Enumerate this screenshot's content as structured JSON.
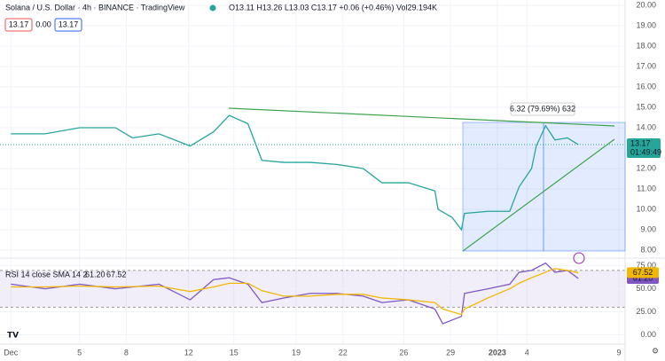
{
  "header": {
    "title": "Solana / U.S. Dollar · 4h · BINANCE · TradingView",
    "ohlc": "O13.11 H13.26 L13.03 C13.17 +0.06 (+0.46%) Vol29.194K",
    "sell": "13.17",
    "spread": "0.00",
    "buy": "13.17"
  },
  "chart_data": [
    {
      "type": "line",
      "title": "6.32 (79.69%) 632",
      "x": [
        0,
        2.2,
        4.4,
        6.7,
        7.8,
        9.5,
        11.5,
        13,
        14,
        15.2,
        16.1,
        17.5,
        19.2,
        20.9,
        22.6,
        23.8,
        25.5,
        27.2,
        27.4,
        28.3,
        28.9,
        29.1,
        30.6,
        32,
        32.6,
        33.4,
        33.7,
        34.3,
        34.9,
        35.7,
        36.4
      ],
      "series": [
        {
          "name": "SOLUSD",
          "color": "#26a69a",
          "values": [
            13.7,
            13.7,
            14.0,
            14.0,
            13.5,
            13.7,
            13.1,
            13.8,
            14.6,
            14.2,
            12.4,
            12.3,
            12.3,
            12.2,
            12.0,
            11.3,
            11.3,
            10.9,
            10.0,
            9.6,
            9.0,
            9.8,
            9.9,
            9.9,
            11.1,
            12.0,
            13.1,
            14.1,
            13.4,
            13.5,
            13.17
          ]
        }
      ],
      "xlim": [
        -0.7,
        39.4
      ],
      "ylim": [
        7.65,
        20.26
      ],
      "xticks": [
        {
          "value": 0,
          "label": "Dec"
        },
        {
          "value": 4.4,
          "label": "5"
        },
        {
          "value": 7.4,
          "label": "8"
        },
        {
          "value": 11.4,
          "label": "12"
        },
        {
          "value": 14.3,
          "label": "15"
        },
        {
          "value": 18.3,
          "label": "19"
        },
        {
          "value": 21.3,
          "label": "22"
        },
        {
          "value": 25.2,
          "label": "26"
        },
        {
          "value": 28.2,
          "label": "29"
        },
        {
          "value": 31.2,
          "label": "2023"
        },
        {
          "value": 33.1,
          "label": "4"
        },
        {
          "value": 39,
          "label": "9"
        }
      ],
      "yticks": [
        {
          "value": 8,
          "label": "8.00"
        },
        {
          "value": 9,
          "label": "9.00"
        },
        {
          "value": 10,
          "label": "10.00"
        },
        {
          "value": 11,
          "label": "11.00"
        },
        {
          "value": 12,
          "label": "12.00"
        },
        {
          "value": 13,
          "label": "13.00"
        },
        {
          "value": 14,
          "label": "14.00"
        },
        {
          "value": 15,
          "label": "15.00"
        },
        {
          "value": 16,
          "label": "16.00"
        },
        {
          "value": 17,
          "label": "17.00"
        },
        {
          "value": 18,
          "label": "18.00"
        },
        {
          "value": 19,
          "label": "19.00"
        },
        {
          "value": 20,
          "label": "20.00"
        }
      ],
      "last": {
        "value": 13.17,
        "label": "13.17",
        "countdown": "01:49:49"
      }
    },
    {
      "type": "line",
      "title": "RSI 14 close SMA 14 2",
      "x": [
        0,
        2.2,
        4.4,
        6.7,
        9.5,
        11.5,
        13,
        14,
        15.2,
        16.1,
        17.5,
        19.2,
        20.9,
        22.6,
        23.8,
        25.5,
        27.2,
        27.7,
        28.9,
        29.1,
        30.6,
        32,
        32.6,
        33.4,
        34.3,
        34.9,
        35.7,
        36.4
      ],
      "series": [
        {
          "name": "RSI",
          "color": "#7e57c2",
          "value_label": "61.20",
          "values": [
            55,
            50,
            55,
            50,
            55,
            38,
            60,
            62,
            55,
            35,
            40,
            45,
            45,
            42,
            35,
            38,
            28,
            12,
            20,
            45,
            50,
            55,
            68,
            70,
            78,
            68,
            70,
            61.2
          ]
        },
        {
          "name": "SMA",
          "color": "#f2b705",
          "value_label": "67.52",
          "values": [
            52,
            52,
            53,
            52,
            53,
            47,
            52,
            56,
            56,
            48,
            42,
            42,
            44,
            44,
            40,
            38,
            35,
            28,
            22,
            28,
            40,
            50,
            56,
            62,
            68,
            72,
            70,
            67.52
          ]
        }
      ],
      "band": [
        30,
        70
      ],
      "xlim": [
        -0.7,
        39.4
      ],
      "ylim": [
        -10.2,
        82.4
      ],
      "yticks": [
        {
          "value": 0,
          "label": "0.00"
        },
        {
          "value": 25,
          "label": "25.00"
        },
        {
          "value": 50,
          "label": "50.00"
        },
        {
          "value": 75,
          "label": "75.00"
        }
      ]
    }
  ]
}
